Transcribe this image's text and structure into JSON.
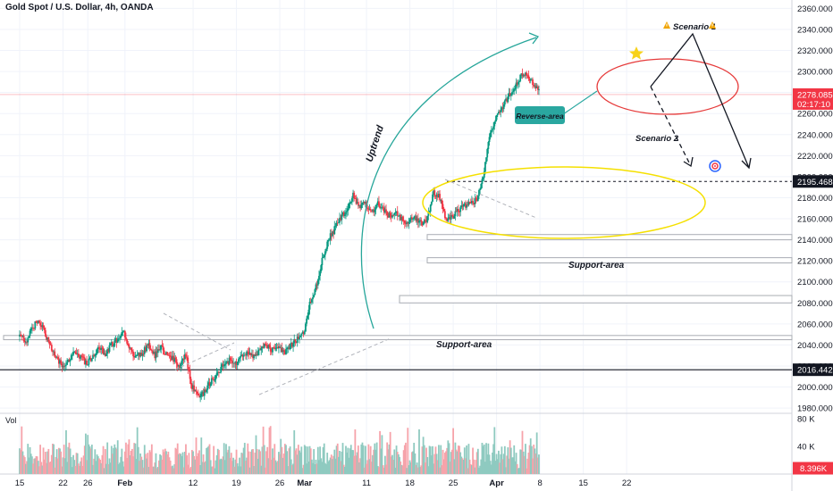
{
  "chart_data": {
    "type": "candlestick",
    "title": "Gold Spot / U.S. Dollar, 4h, OANDA",
    "y_axis": {
      "ylim": [
        1975,
        2368
      ],
      "ticks": [
        1980,
        2000,
        2020,
        2040,
        2060,
        2080,
        2100,
        2120,
        2140,
        2160,
        2180,
        2200,
        2220,
        2240,
        2260,
        2280,
        2300,
        2320,
        2340,
        2360
      ],
      "tick_labels": [
        "1980.000",
        "2000.000",
        "2020.000",
        "2040.000",
        "2060.000",
        "2080.000",
        "2100.000",
        "2120.000",
        "2140.000",
        "2160.000",
        "2180.000",
        "2200.000",
        "2220.000",
        "2240.000",
        "2260.000",
        "2280.000",
        "2300.000",
        "2320.000",
        "2340.000",
        "2360.000"
      ]
    },
    "x_axis": {
      "ticks": [
        {
          "label": "15",
          "day": 0,
          "bold": false
        },
        {
          "label": "22",
          "day": 7,
          "bold": false
        },
        {
          "label": "26",
          "day": 11,
          "bold": false
        },
        {
          "label": "Feb",
          "day": 17,
          "bold": true
        },
        {
          "label": "12",
          "day": 28,
          "bold": false
        },
        {
          "label": "19",
          "day": 35,
          "bold": false
        },
        {
          "label": "26",
          "day": 42,
          "bold": false
        },
        {
          "label": "Mar",
          "day": 46,
          "bold": true
        },
        {
          "label": "11",
          "day": 56,
          "bold": false
        },
        {
          "label": "18",
          "day": 63,
          "bold": false
        },
        {
          "label": "25",
          "day": 70,
          "bold": false
        },
        {
          "label": "Apr",
          "day": 77,
          "bold": true
        },
        {
          "label": "8",
          "day": 84,
          "bold": false
        },
        {
          "label": "15",
          "day": 91,
          "bold": false
        },
        {
          "label": "22",
          "day": 98,
          "bold": false
        }
      ]
    },
    "price_anchors": [
      [
        0,
        2048
      ],
      [
        1.5,
        2044
      ],
      [
        2,
        2055
      ],
      [
        3,
        2062
      ],
      [
        4,
        2055
      ],
      [
        5,
        2040
      ],
      [
        6,
        2028
      ],
      [
        7,
        2020
      ],
      [
        8,
        2026
      ],
      [
        9,
        2032
      ],
      [
        10,
        2028
      ],
      [
        11,
        2022
      ],
      [
        12,
        2028
      ],
      [
        13,
        2038
      ],
      [
        14,
        2032
      ],
      [
        15,
        2040
      ],
      [
        16,
        2045
      ],
      [
        17,
        2052
      ],
      [
        18,
        2035
      ],
      [
        19,
        2028
      ],
      [
        20,
        2033
      ],
      [
        21,
        2040
      ],
      [
        22,
        2030
      ],
      [
        23,
        2038
      ],
      [
        24,
        2030
      ],
      [
        25,
        2026
      ],
      [
        26,
        2020
      ],
      [
        27,
        2030
      ],
      [
        28,
        2000
      ],
      [
        29,
        1992
      ],
      [
        30,
        1995
      ],
      [
        31,
        2005
      ],
      [
        32,
        2012
      ],
      [
        33,
        2020
      ],
      [
        34,
        2025
      ],
      [
        35,
        2022
      ],
      [
        36,
        2028
      ],
      [
        37,
        2032
      ],
      [
        38,
        2028
      ],
      [
        39,
        2036
      ],
      [
        40,
        2040
      ],
      [
        41,
        2035
      ],
      [
        42,
        2038
      ],
      [
        43,
        2034
      ],
      [
        44,
        2040
      ],
      [
        45,
        2046
      ],
      [
        46,
        2050
      ],
      [
        47,
        2080
      ],
      [
        48,
        2095
      ],
      [
        49,
        2120
      ],
      [
        50,
        2140
      ],
      [
        51,
        2150
      ],
      [
        52,
        2160
      ],
      [
        53,
        2170
      ],
      [
        54,
        2182
      ],
      [
        55,
        2172
      ],
      [
        56,
        2175
      ],
      [
        57,
        2165
      ],
      [
        58,
        2175
      ],
      [
        59,
        2168
      ],
      [
        60,
        2162
      ],
      [
        61,
        2165
      ],
      [
        62,
        2158
      ],
      [
        63,
        2158
      ],
      [
        64,
        2160
      ],
      [
        65,
        2155
      ],
      [
        66,
        2160
      ],
      [
        67,
        2185
      ],
      [
        68,
        2180
      ],
      [
        69,
        2160
      ],
      [
        70,
        2162
      ],
      [
        71,
        2168
      ],
      [
        72,
        2172
      ],
      [
        73,
        2175
      ],
      [
        74,
        2178
      ],
      [
        75,
        2200
      ],
      [
        76,
        2240
      ],
      [
        77,
        2255
      ],
      [
        78,
        2265
      ],
      [
        79,
        2275
      ],
      [
        80,
        2285
      ],
      [
        81,
        2295
      ],
      [
        82,
        2298
      ],
      [
        83,
        2290
      ],
      [
        84,
        2280
      ]
    ],
    "volume": {
      "ylim": [
        0,
        88000
      ],
      "ticks": [
        80000,
        40000
      ],
      "tick_labels": [
        "80 K",
        "40 K"
      ],
      "last": "8.396K",
      "label": "Vol"
    },
    "price_labels": {
      "last": "2278.085",
      "countdown": "02:17:10",
      "level": "2195.468",
      "support": "2016.442"
    },
    "levels": [
      {
        "name": "support-zone-high",
        "low": 2140,
        "high": 2145
      },
      {
        "name": "support-zone-mid",
        "low": 2118,
        "high": 2123
      },
      {
        "name": "support-zone-upper-low",
        "low": 2080,
        "high": 2087
      },
      {
        "name": "support-zone-low",
        "low": 2045,
        "high": 2049
      }
    ],
    "annotations": {
      "uptrend": "Uptrend",
      "reverse": "Reverse-area",
      "scenario1": "Scenario 1",
      "scenario2": "Scenario 2",
      "support_upper": "Support-area",
      "support_lower": "Support-area"
    },
    "colors": {
      "up": "#089981",
      "down": "#f23645",
      "vol_up": "#8fcac0",
      "vol_down": "#f6a3aa",
      "teal": "#26a69a",
      "reverse_box": "#2aa7a0",
      "yellow_ellipse": "#f5e000",
      "red_ellipse": "#e63a3a",
      "last_price_red": "#f23645"
    }
  }
}
